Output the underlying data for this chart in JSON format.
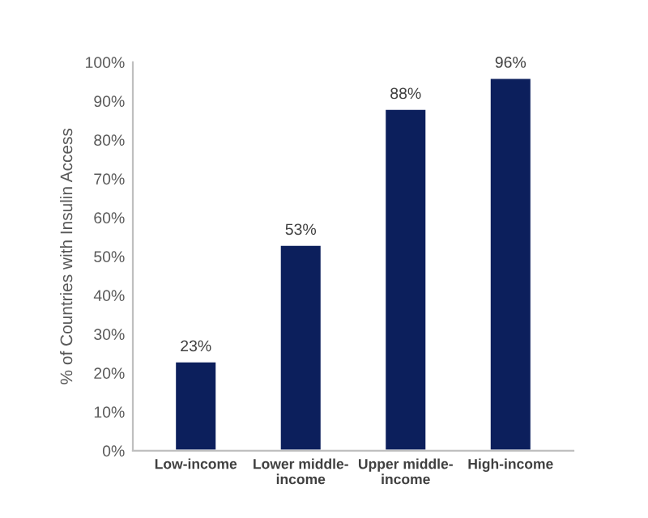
{
  "chart_data": {
    "type": "bar",
    "categories": [
      "Low-income",
      "Lower middle-\nincome",
      "Upper middle-\nincome",
      "High-income"
    ],
    "values": [
      23,
      53,
      88,
      96
    ],
    "value_labels": [
      "23%",
      "53%",
      "88%",
      "96%"
    ],
    "color": "#0c1f5c",
    "ylabel": "% of Countries with Insulin Access",
    "ylim": [
      0,
      100
    ],
    "yticks": [
      {
        "value": 0,
        "label": "0%"
      },
      {
        "value": 10,
        "label": "10%"
      },
      {
        "value": 20,
        "label": "20%"
      },
      {
        "value": 30,
        "label": "30%"
      },
      {
        "value": 40,
        "label": "40%"
      },
      {
        "value": 50,
        "label": "50%"
      },
      {
        "value": 60,
        "label": "60%"
      },
      {
        "value": 70,
        "label": "70%"
      },
      {
        "value": 80,
        "label": "80%"
      },
      {
        "value": 90,
        "label": "90%"
      },
      {
        "value": 100,
        "label": "100%"
      }
    ],
    "grid": false
  }
}
